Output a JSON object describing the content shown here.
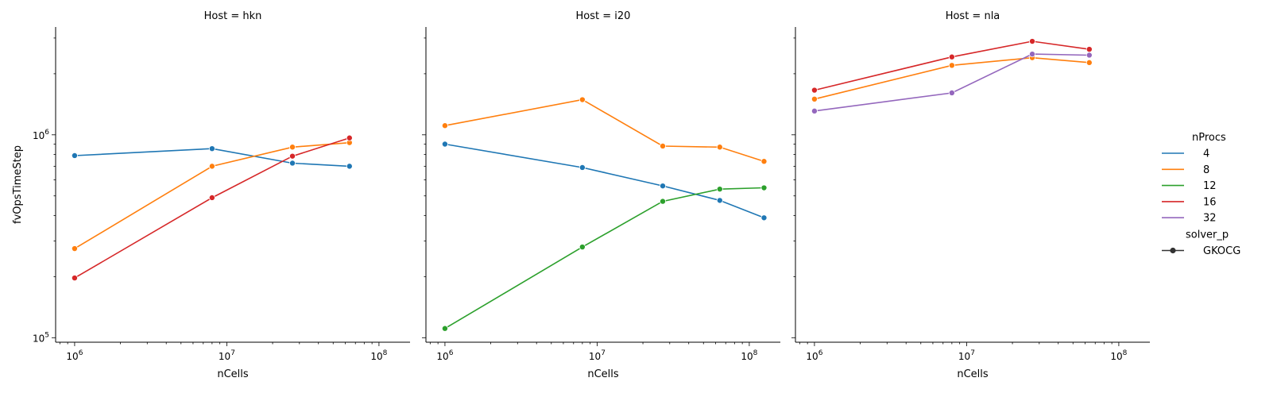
{
  "chart_data": {
    "type": "line",
    "xlabel": "nCells",
    "ylabel": "fvOpsTimeStep",
    "x_scale": "log",
    "y_scale": "log",
    "xlim": [
      750000,
      160000000
    ],
    "ylim": [
      95000,
      3400000
    ],
    "x_ticks": [
      {
        "value": 1000000,
        "base": "10",
        "exp": "6"
      },
      {
        "value": 10000000,
        "base": "10",
        "exp": "7"
      },
      {
        "value": 100000000,
        "base": "10",
        "exp": "8"
      }
    ],
    "y_ticks": [
      {
        "value": 100000,
        "base": "10",
        "exp": "5"
      },
      {
        "value": 1000000,
        "base": "10",
        "exp": "6"
      }
    ],
    "grid": false,
    "legend": {
      "placement": "right",
      "hue_title": "nProcs",
      "entries": [
        {
          "label": "4",
          "color": "#1f77b4"
        },
        {
          "label": "8",
          "color": "#ff7f0e"
        },
        {
          "label": "12",
          "color": "#2ca02c"
        },
        {
          "label": "16",
          "color": "#d62728"
        },
        {
          "label": "32",
          "color": "#9467bd"
        }
      ],
      "style_title": "solver_p",
      "style_entries": [
        {
          "label": "GKOCG",
          "color": "#333333"
        }
      ]
    },
    "panels": [
      {
        "title": "Host = hkn",
        "series": [
          {
            "nprocs": "4",
            "color": "#1f77b4",
            "x": [
              1000000,
              8000000,
              27000000,
              64000000
            ],
            "y": [
              790000,
              855000,
              725000,
              700000
            ]
          },
          {
            "nprocs": "8",
            "color": "#ff7f0e",
            "x": [
              1000000,
              8000000,
              27000000,
              64000000
            ],
            "y": [
              275000,
              700000,
              870000,
              915000
            ]
          },
          {
            "nprocs": "16",
            "color": "#d62728",
            "x": [
              1000000,
              8000000,
              27000000,
              64000000
            ],
            "y": [
              197000,
              490000,
              785000,
              965000
            ]
          }
        ]
      },
      {
        "title": "Host = i20",
        "series": [
          {
            "nprocs": "4",
            "color": "#1f77b4",
            "x": [
              1000000,
              8000000,
              27000000,
              64000000,
              125000000
            ],
            "y": [
              900000,
              690000,
              560000,
              475000,
              390000
            ]
          },
          {
            "nprocs": "8",
            "color": "#ff7f0e",
            "x": [
              1000000,
              8000000,
              27000000,
              64000000,
              125000000
            ],
            "y": [
              1110000,
              1490000,
              880000,
              870000,
              740000
            ]
          },
          {
            "nprocs": "12",
            "color": "#2ca02c",
            "x": [
              1000000,
              8000000,
              27000000,
              64000000,
              125000000
            ],
            "y": [
              111000,
              280000,
              470000,
              540000,
              548000
            ]
          }
        ]
      },
      {
        "title": "Host = nla",
        "series": [
          {
            "nprocs": "8",
            "color": "#ff7f0e",
            "x": [
              1000000,
              8000000,
              27000000,
              64000000
            ],
            "y": [
              1500000,
              2200000,
              2400000,
              2270000
            ]
          },
          {
            "nprocs": "16",
            "color": "#d62728",
            "x": [
              1000000,
              8000000,
              27000000,
              64000000
            ],
            "y": [
              1660000,
              2420000,
              2890000,
              2640000
            ]
          },
          {
            "nprocs": "32",
            "color": "#9467bd",
            "x": [
              1000000,
              8000000,
              27000000,
              64000000
            ],
            "y": [
              1310000,
              1610000,
              2500000,
              2470000
            ]
          }
        ]
      }
    ]
  }
}
